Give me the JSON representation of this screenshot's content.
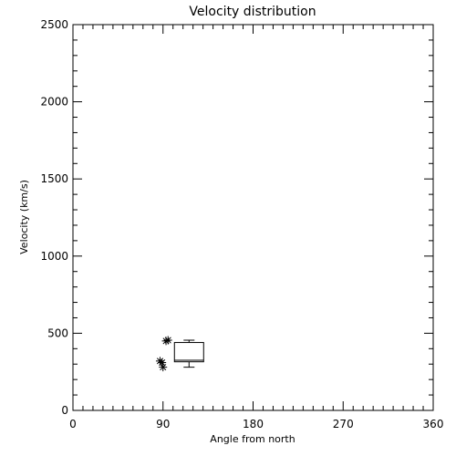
{
  "chart_data": {
    "type": "box",
    "title": "Velocity distribution",
    "xlabel": "Angle from north",
    "ylabel": "Velocity (km/s)",
    "xlim": [
      0,
      360
    ],
    "ylim": [
      0,
      2500
    ],
    "xticks": [
      0,
      90,
      180,
      270,
      360
    ],
    "xtick_labels": [
      "0",
      "90",
      "180",
      "270",
      "360"
    ],
    "yticks": [
      0,
      500,
      1000,
      1500,
      2000,
      2500
    ],
    "ytick_labels": [
      "0",
      "500",
      "1000",
      "1500",
      "2000",
      "2500"
    ],
    "grid": false,
    "box": {
      "x": 116,
      "min": 280,
      "q1": 315,
      "median": 325,
      "q3": 440,
      "max": 455
    },
    "points": [
      {
        "x": 93,
        "y": 450
      },
      {
        "x": 95,
        "y": 455
      },
      {
        "x": 87,
        "y": 320
      },
      {
        "x": 89,
        "y": 310
      },
      {
        "x": 90,
        "y": 280
      }
    ],
    "colors": {
      "axis": "#000000",
      "marks": "#000000",
      "background": "#ffffff"
    }
  }
}
